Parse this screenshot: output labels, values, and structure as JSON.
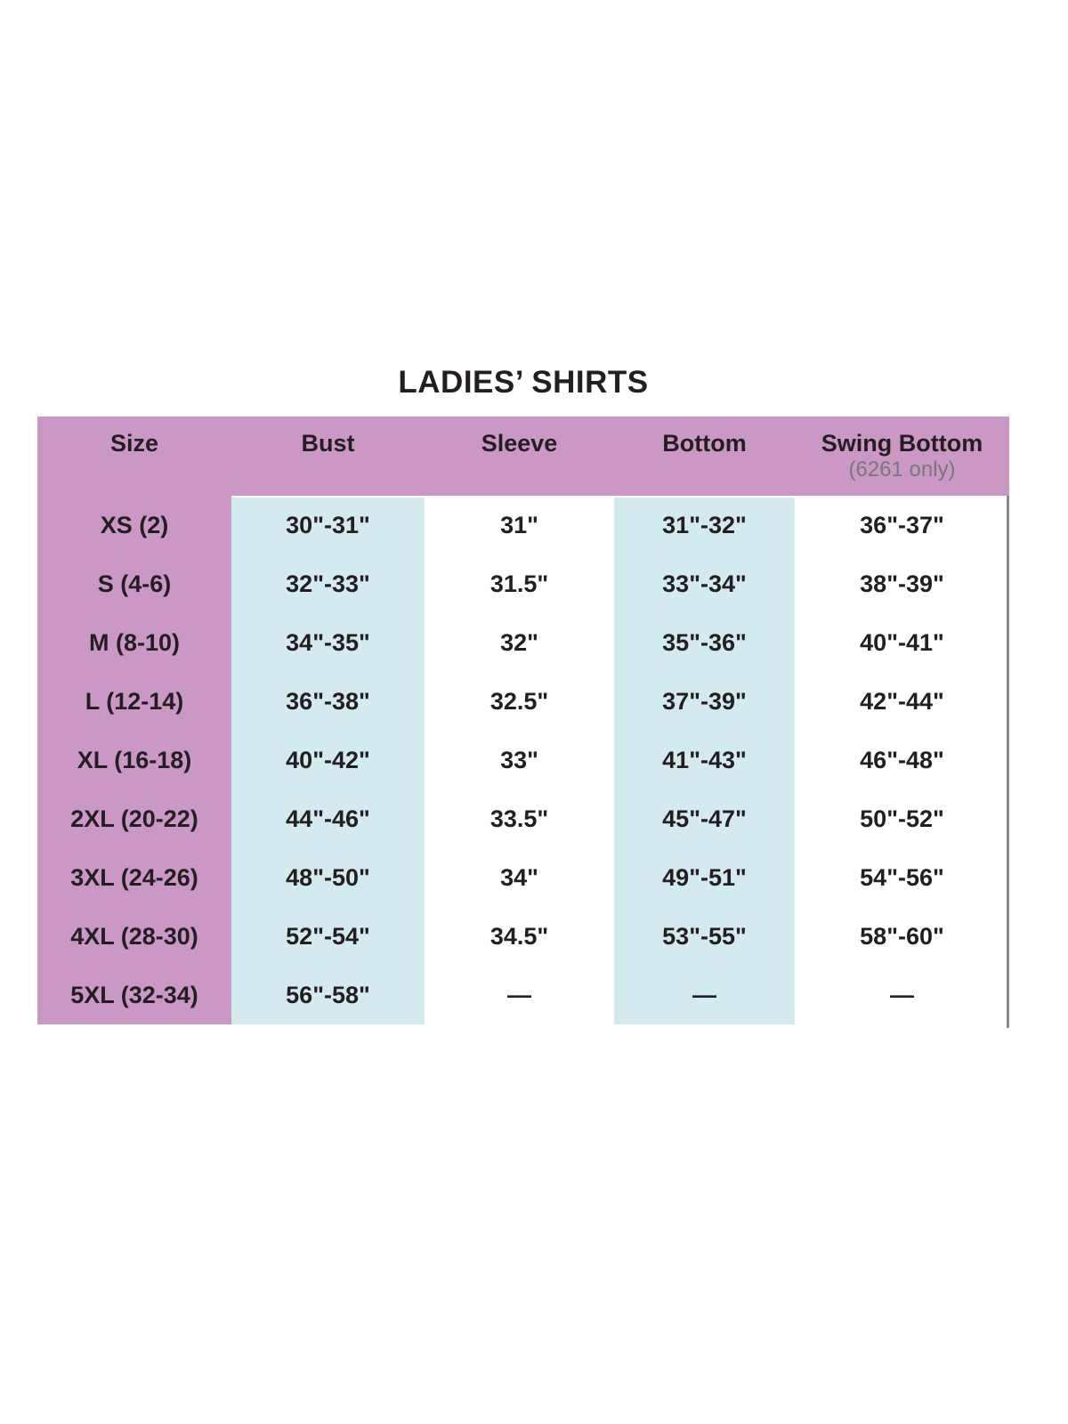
{
  "page": {
    "title": "LADIES’ SHIRTS"
  },
  "table": {
    "columns": [
      {
        "label": "Size"
      },
      {
        "label": "Bust"
      },
      {
        "label": "Sleeve"
      },
      {
        "label": "Bottom"
      },
      {
        "label": "Swing Bottom",
        "sublabel": "(6261 only)"
      }
    ],
    "rows": [
      {
        "size": "XS (2)",
        "bust": "30\"-31\"",
        "sleeve": "31\"",
        "bottom": "31\"-32\"",
        "swing_bottom": "36\"-37\""
      },
      {
        "size": "S (4-6)",
        "bust": "32\"-33\"",
        "sleeve": "31.5\"",
        "bottom": "33\"-34\"",
        "swing_bottom": "38\"-39\""
      },
      {
        "size": "M (8-10)",
        "bust": "34\"-35\"",
        "sleeve": "32\"",
        "bottom": "35\"-36\"",
        "swing_bottom": "40\"-41\""
      },
      {
        "size": "L (12-14)",
        "bust": "36\"-38\"",
        "sleeve": "32.5\"",
        "bottom": "37\"-39\"",
        "swing_bottom": "42\"-44\""
      },
      {
        "size": "XL (16-18)",
        "bust": "40\"-42\"",
        "sleeve": "33\"",
        "bottom": "41\"-43\"",
        "swing_bottom": "46\"-48\""
      },
      {
        "size": "2XL (20-22)",
        "bust": "44\"-46\"",
        "sleeve": "33.5\"",
        "bottom": "45\"-47\"",
        "swing_bottom": "50\"-52\""
      },
      {
        "size": "3XL (24-26)",
        "bust": "48\"-50\"",
        "sleeve": "34\"",
        "bottom": "49\"-51\"",
        "swing_bottom": "54\"-56\""
      },
      {
        "size": "4XL (28-30)",
        "bust": "52\"-54\"",
        "sleeve": "34.5\"",
        "bottom": "53\"-55\"",
        "swing_bottom": "58\"-60\""
      },
      {
        "size": "5XL (32-34)",
        "bust": "56\"-58\"",
        "sleeve": "—",
        "bottom": "—",
        "swing_bottom": "—"
      }
    ]
  },
  "colors": {
    "header_pink": "#cb98c5",
    "column_blue": "#d3eaef",
    "text_dark": "#231f20",
    "text_gray": "#77787b",
    "border_gray": "#8a8a8a",
    "page_bg": "#ffffff"
  }
}
